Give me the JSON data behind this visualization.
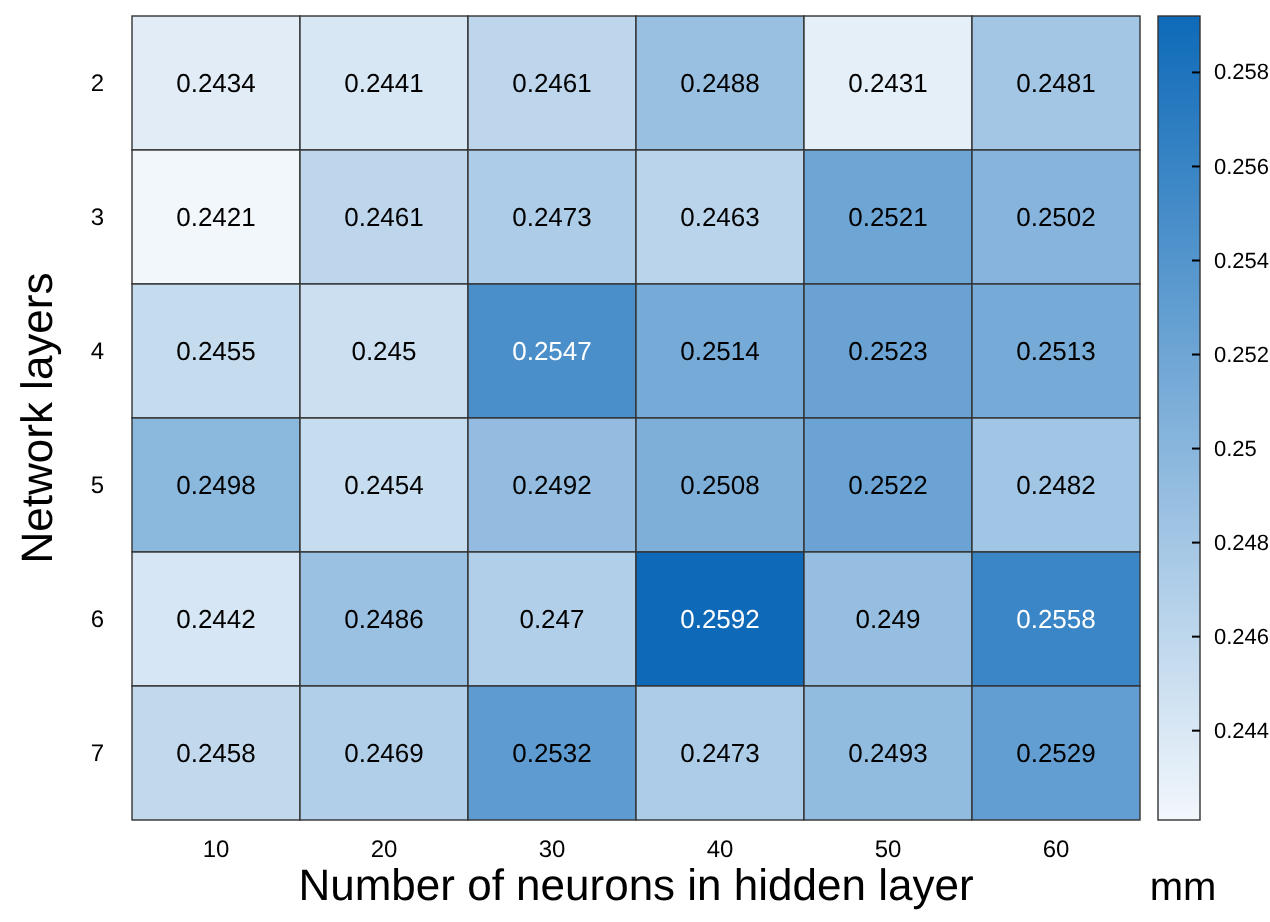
{
  "chart_data": {
    "type": "heatmap",
    "xlabel": "Number of neurons in hidden layer",
    "ylabel": "Network layers",
    "clabel": "mm",
    "categories": [
      "10",
      "20",
      "30",
      "40",
      "50",
      "60"
    ],
    "y_categories": [
      "2",
      "3",
      "4",
      "5",
      "6",
      "7"
    ],
    "cells": [
      [
        0.2434,
        0.2441,
        0.2461,
        0.2488,
        0.2431,
        0.2481
      ],
      [
        0.2421,
        0.2461,
        0.2473,
        0.2463,
        0.2521,
        0.2502
      ],
      [
        0.2455,
        0.245,
        0.2547,
        0.2514,
        0.2523,
        0.2513
      ],
      [
        0.2498,
        0.2454,
        0.2492,
        0.2508,
        0.2522,
        0.2482
      ],
      [
        0.2442,
        0.2486,
        0.247,
        0.2592,
        0.249,
        0.2558
      ],
      [
        0.2458,
        0.2469,
        0.2532,
        0.2473,
        0.2493,
        0.2529
      ]
    ],
    "data_labels": true,
    "colors": [
      "#f2f7fc",
      "#0e6ab8"
    ],
    "clim": [
      0.2421,
      0.2592
    ],
    "cticks": [
      0.244,
      0.246,
      0.248,
      0.25,
      0.252,
      0.254,
      0.256,
      0.258
    ]
  }
}
